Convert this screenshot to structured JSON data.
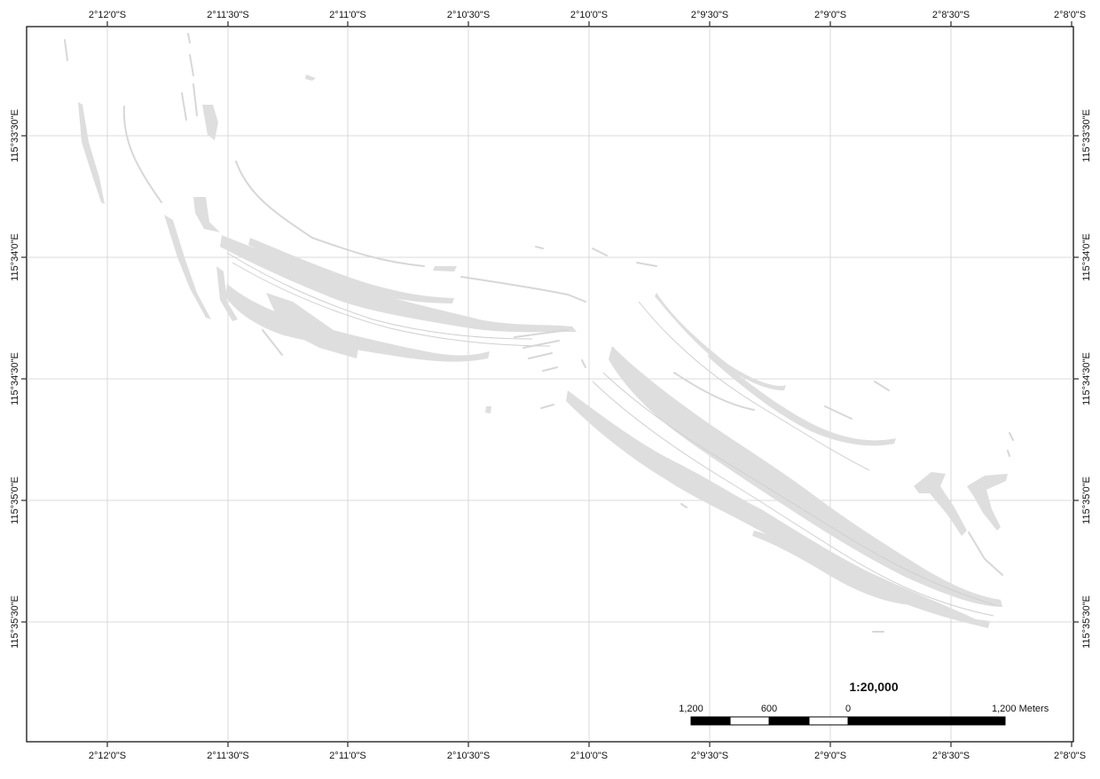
{
  "map": {
    "top_labels": [
      "2°12'0\"S",
      "2°11'30\"S",
      "2°11'0\"S",
      "2°10'30\"S",
      "2°10'0\"S",
      "2°9'30\"S",
      "2°9'0\"S",
      "2°8'30\"S",
      "2°8'0\"S"
    ],
    "bottom_labels": [
      "2°12'0\"S",
      "2°11'30\"S",
      "2°11'0\"S",
      "2°10'30\"S",
      "2°10'0\"S",
      "2°9'30\"S",
      "2°9'0\"S",
      "2°8'30\"S",
      "2°8'0\"S"
    ],
    "left_labels": [
      "115°33'30\"E",
      "115°34'0\"E",
      "115°34'30\"E",
      "115°35'0\"E",
      "115°35'30\"E"
    ],
    "right_labels": [
      "115°33'30\"E",
      "115°34'0\"E",
      "115°34'30\"E",
      "115°35'0\"E",
      "115°35'30\"E"
    ],
    "feature_color": "#dedede",
    "grid_color": "#cfcfcf"
  },
  "scale": {
    "ratio": "1:20,000",
    "labels": [
      "1,200",
      "600",
      "0",
      "1,200 Meters"
    ]
  }
}
